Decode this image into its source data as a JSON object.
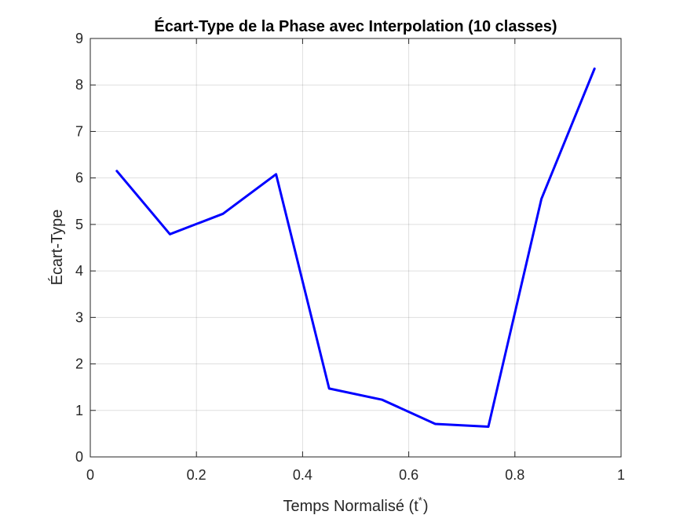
{
  "chart_data": {
    "type": "line",
    "title": "Écart-Type de la Phase avec Interpolation (10 classes)",
    "xlabel": "Temps Normalisé (t",
    "xlabel_superscript": "*",
    "xlabel_suffix": ")",
    "ylabel": "Écart-Type",
    "xlim": [
      0,
      1
    ],
    "ylim": [
      0,
      9
    ],
    "xticks": [
      0,
      0.2,
      0.4,
      0.6,
      0.8,
      1
    ],
    "xtick_labels": [
      "0",
      "0.2",
      "0.4",
      "0.6",
      "0.8",
      "1"
    ],
    "yticks": [
      0,
      1,
      2,
      3,
      4,
      5,
      6,
      7,
      8,
      9
    ],
    "ytick_labels": [
      "0",
      "1",
      "2",
      "3",
      "4",
      "5",
      "6",
      "7",
      "8",
      "9"
    ],
    "grid": true,
    "series": [
      {
        "x": [
          0.05,
          0.15,
          0.25,
          0.35,
          0.45,
          0.55,
          0.65,
          0.75,
          0.85,
          0.95
        ],
        "y": [
          6.15,
          4.79,
          5.23,
          6.08,
          1.47,
          1.23,
          0.71,
          0.65,
          5.55,
          8.35
        ],
        "color": "#0000ff"
      }
    ]
  }
}
